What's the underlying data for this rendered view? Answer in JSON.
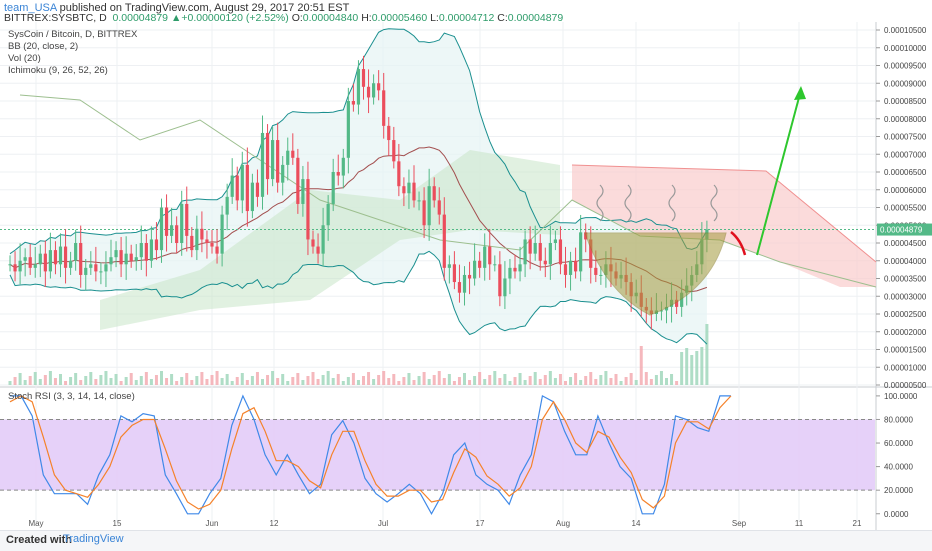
{
  "header": {
    "user": "team_USA",
    "published": "published on TradingView.com, August 29, 2017 20:51 EST",
    "symbol_line": "BITTREX:SYSBTC, D",
    "last": "0.00004879",
    "change_arrow": "▲",
    "change": "+0.00000120 (+2.52%)",
    "o_label": "O:",
    "o_value": "0.00004840",
    "h_label": "H:",
    "h_value": "0.00005460",
    "l_label": "L:",
    "l_value": "0.00004712",
    "c_label": "C:",
    "c_value": "0.00004879"
  },
  "legend": {
    "title": "SysCoin / Bitcoin, D, BITTREX",
    "bb": "BB (20, close, 2)",
    "vol": "Vol (20)",
    "ichimoku": "Ichimoku (9, 26, 52, 26)",
    "stoch": "Stoch RSI (3, 3, 14, 14, close)"
  },
  "footer": {
    "created": "Created with",
    "brand": "TradingView"
  },
  "colors": {
    "up": "#53b987",
    "down": "#eb4d5c",
    "bb": "#1a8f8f",
    "cloud": "#c8e6c9",
    "cloud_red": "#f9cccc",
    "stoch_k": "#3f89e8",
    "stoch_d": "#f5822a",
    "stoch_band": "#e3ccf8",
    "arrow": "#2ec72e",
    "cup": "#a49a3c"
  },
  "chart_data": [
    {
      "type": "candlestick",
      "title": "SysCoin / Bitcoin, D, BITTREX",
      "y_ticks": [
        "0.00010500",
        "0.00010000",
        "0.00009500",
        "0.00009000",
        "0.00008500",
        "0.00008000",
        "0.00007500",
        "0.00007000",
        "0.00006500",
        "0.00006000",
        "0.00005500",
        "0.00005000",
        "0.00004500",
        "0.00004000",
        "0.00003500",
        "0.00003000",
        "0.00002500",
        "0.00002000",
        "0.00001500",
        "0.00001000",
        "0.00000500"
      ],
      "y_values": [
        10.5,
        10,
        9.5,
        9,
        8.5,
        8,
        7.5,
        7,
        6.5,
        6,
        5.5,
        5,
        4.5,
        4,
        3.5,
        3,
        2.5,
        2,
        1.5,
        1,
        0.5
      ],
      "last_price_label": "0.00004879",
      "x_ticks": [
        "May",
        "15",
        "Jun",
        "12",
        "Jul",
        "17",
        "Aug",
        "14",
        "Sep",
        "11",
        "21"
      ],
      "close_series_e5": [
        3.9,
        3.7,
        4.0,
        4.1,
        3.8,
        3.9,
        4.2,
        3.7,
        4.3,
        3.9,
        4.4,
        3.8,
        4.0,
        4.5,
        3.6,
        3.8,
        3.9,
        3.7,
        3.7,
        3.9,
        4.1,
        4.3,
        3.9,
        4.2,
        4.0,
        4.1,
        4.5,
        4.0,
        4.6,
        4.3,
        5.5,
        4.7,
        5.0,
        4.5,
        5.6,
        4.7,
        4.3,
        4.9,
        4.6,
        4.5,
        4.4,
        4.2,
        5.3,
        5.8,
        6.4,
        5.7,
        6.7,
        5.4,
        6.2,
        5.8,
        7.6,
        6.3,
        7.4,
        6.2,
        6.7,
        7.1,
        6.9,
        5.6,
        6.3,
        4.6,
        4.4,
        4.2,
        5.0,
        5.6,
        6.5,
        6.4,
        6.9,
        8.5,
        8.4,
        9.4,
        8.9,
        8.6,
        9.0,
        8.8,
        7.8,
        7.4,
        6.8,
        6.1,
        5.9,
        6.2,
        5.7,
        5.7,
        5.0,
        6.1,
        5.7,
        5.3,
        3.8,
        3.9,
        3.4,
        3.1,
        3.6,
        3.5,
        4.0,
        3.8,
        4.4,
        3.9,
        3.9,
        3.0,
        3.5,
        3.8,
        3.7,
        3.9,
        4.6,
        4.2,
        4.5,
        4.0,
        3.9,
        4.5,
        4.6,
        3.9,
        3.6,
        4.0,
        3.7,
        4.8,
        4.6,
        3.8,
        3.6,
        3.6,
        3.9,
        3.7,
        3.5,
        3.6,
        3.4,
        3.0,
        3.1,
        2.7,
        2.6,
        2.5,
        2.6,
        2.6,
        2.7,
        2.9,
        2.7,
        3.1,
        3.3,
        3.6,
        3.9,
        4.6,
        4.879
      ],
      "annotations": [
        "cup",
        "projection arrow"
      ]
    },
    {
      "type": "line",
      "title": "Stoch RSI (3, 3, 14, 14, close)",
      "y_ticks": [
        "100.0000",
        "80.0000",
        "60.0000",
        "40.0000",
        "20.0000",
        "0.0000"
      ],
      "y_values": [
        100,
        80,
        60,
        40,
        20,
        0
      ],
      "band": [
        20,
        80
      ],
      "series": [
        {
          "values": [
            100,
            100,
            83,
            33,
            17,
            17,
            17,
            8,
            33,
            50,
            83,
            78,
            85,
            83,
            33,
            17,
            0,
            0,
            17,
            30,
            75,
            100,
            80,
            50,
            33,
            50,
            33,
            17,
            25,
            67,
            79,
            60,
            30,
            17,
            10,
            17,
            25,
            17,
            0,
            17,
            50,
            60,
            33,
            25,
            20,
            8,
            33,
            50,
            100,
            95,
            70,
            50,
            50,
            83,
            60,
            40,
            30,
            0,
            0,
            25,
            83,
            80,
            73,
            70,
            100,
            100
          ]
        },
        {
          "values": [
            95,
            100,
            95,
            65,
            33,
            20,
            17,
            14,
            25,
            40,
            65,
            75,
            80,
            80,
            55,
            28,
            10,
            4,
            8,
            20,
            55,
            85,
            90,
            70,
            45,
            45,
            40,
            28,
            22,
            50,
            70,
            70,
            45,
            25,
            15,
            15,
            20,
            20,
            10,
            12,
            35,
            55,
            48,
            32,
            25,
            15,
            22,
            40,
            80,
            95,
            80,
            60,
            52,
            70,
            65,
            48,
            35,
            12,
            5,
            15,
            60,
            78,
            78,
            72,
            90,
            100
          ]
        }
      ]
    }
  ]
}
